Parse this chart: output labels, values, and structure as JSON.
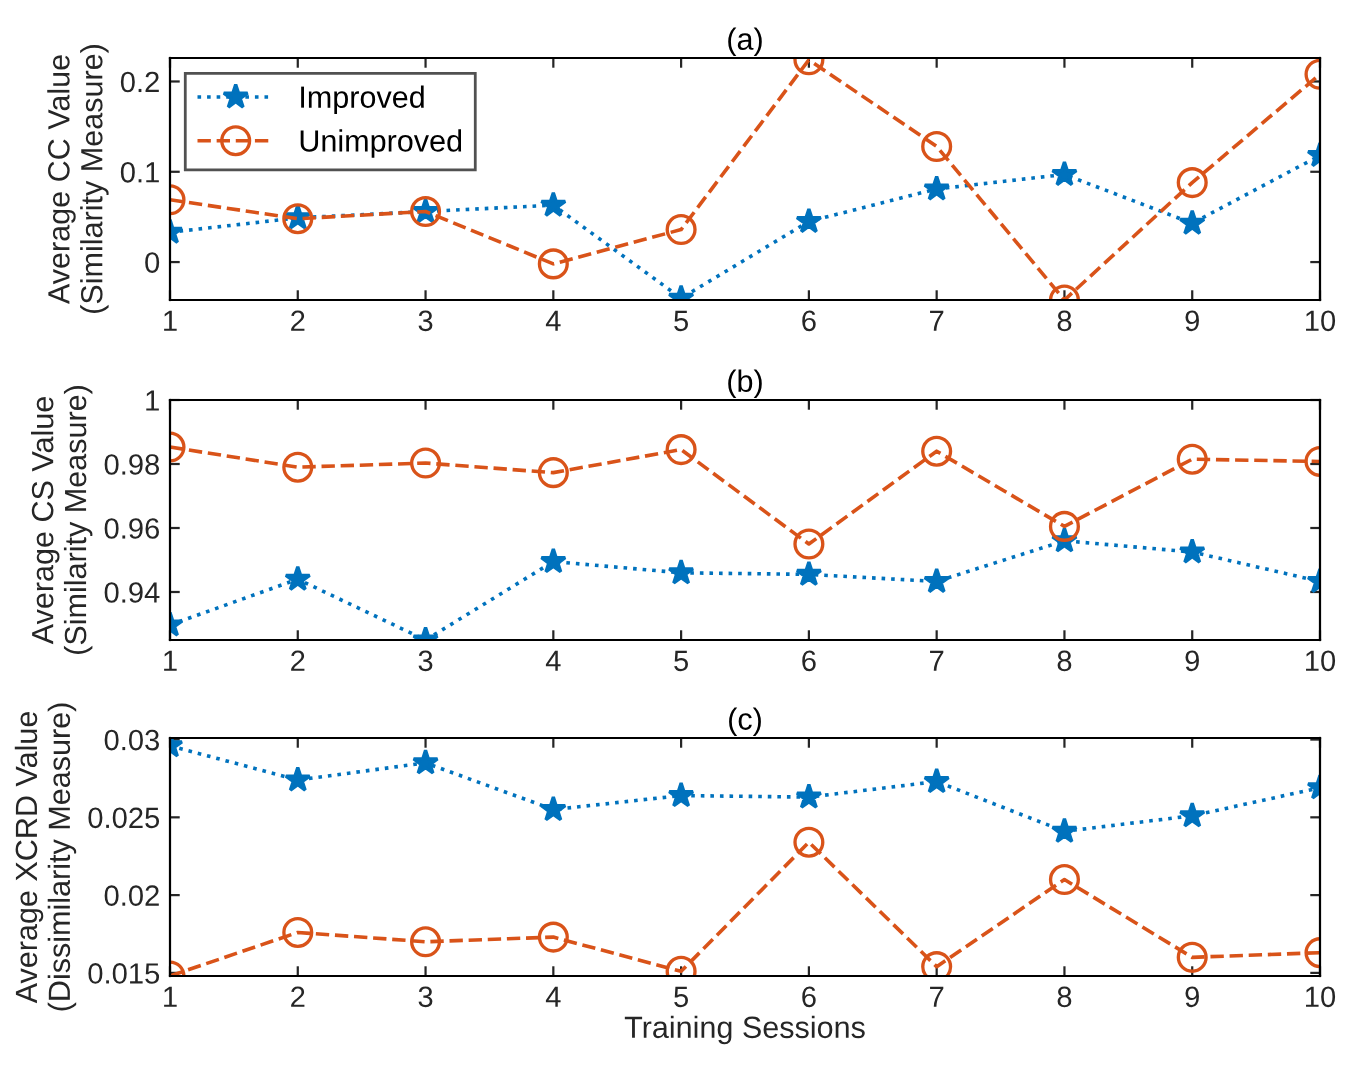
{
  "chart_data": [
    {
      "type": "line",
      "title": "(a)",
      "ylabel": "Average CC Value\n(Similarity Measure)",
      "x": [
        1,
        2,
        3,
        4,
        5,
        6,
        7,
        8,
        9,
        10
      ],
      "xlim": [
        1,
        10
      ],
      "xticks": [
        1,
        2,
        3,
        4,
        5,
        6,
        7,
        8,
        9,
        10
      ],
      "ylim": [
        -0.042,
        0.226
      ],
      "yticks": [
        0,
        0.1,
        0.2
      ],
      "legend": "top left",
      "grid": false,
      "series": [
        {
          "name": "Improved",
          "color": "#0072bd",
          "marker": "star",
          "line_style": "dotted",
          "values": [
            0.033,
            0.049,
            0.056,
            0.063,
            -0.04,
            0.045,
            0.081,
            0.097,
            0.043,
            0.118
          ]
        },
        {
          "name": "Unimproved",
          "color": "#d95319",
          "marker": "circle",
          "line_style": "dashed",
          "values": [
            0.069,
            0.048,
            0.056,
            -0.002,
            0.036,
            0.224,
            0.128,
            -0.042,
            0.088,
            0.208
          ]
        }
      ]
    },
    {
      "type": "line",
      "title": "(b)",
      "ylabel": "Average CS Value\n(Similarity Measure)",
      "x": [
        1,
        2,
        3,
        4,
        5,
        6,
        7,
        8,
        9,
        10
      ],
      "xlim": [
        1,
        10
      ],
      "xticks": [
        1,
        2,
        3,
        4,
        5,
        6,
        7,
        8,
        9,
        10
      ],
      "ylim": [
        0.925,
        1
      ],
      "yticks": [
        0.94,
        0.96,
        0.98,
        1
      ],
      "legend": false,
      "grid": false,
      "series": [
        {
          "color": "#0072bd",
          "marker": "star",
          "line_style": "dotted",
          "values": [
            0.9297,
            0.944,
            0.925,
            0.9495,
            0.946,
            0.9455,
            0.9433,
            0.956,
            0.9525,
            0.9433
          ]
        },
        {
          "color": "#d95319",
          "marker": "circle",
          "line_style": "dashed",
          "values": [
            0.9853,
            0.979,
            0.9803,
            0.9773,
            0.9845,
            0.955,
            0.984,
            0.9605,
            0.9815,
            0.9808
          ]
        }
      ]
    },
    {
      "type": "line",
      "title": "(c)",
      "xlabel": "Training Sessions",
      "ylabel": "Average XCRD Value\n(Dissimilarity Measure)",
      "x": [
        1,
        2,
        3,
        4,
        5,
        6,
        7,
        8,
        9,
        10
      ],
      "xlim": [
        1,
        10
      ],
      "xticks": [
        1,
        2,
        3,
        4,
        5,
        6,
        7,
        8,
        9,
        10
      ],
      "ylim": [
        0.0148,
        0.0301
      ],
      "yticks": [
        0.015,
        0.02,
        0.025,
        0.03
      ],
      "legend": false,
      "grid": false,
      "series": [
        {
          "color": "#0072bd",
          "marker": "star",
          "line_style": "dotted",
          "values": [
            0.0296,
            0.0274,
            0.0285,
            0.0255,
            0.0264,
            0.0263,
            0.0273,
            0.0241,
            0.0251,
            0.0269
          ]
        },
        {
          "color": "#d95319",
          "marker": "circle",
          "line_style": "dashed",
          "values": [
            0.0148,
            0.0176,
            0.017,
            0.0173,
            0.0151,
            0.0234,
            0.0154,
            0.021,
            0.016,
            0.0163
          ]
        }
      ]
    }
  ]
}
